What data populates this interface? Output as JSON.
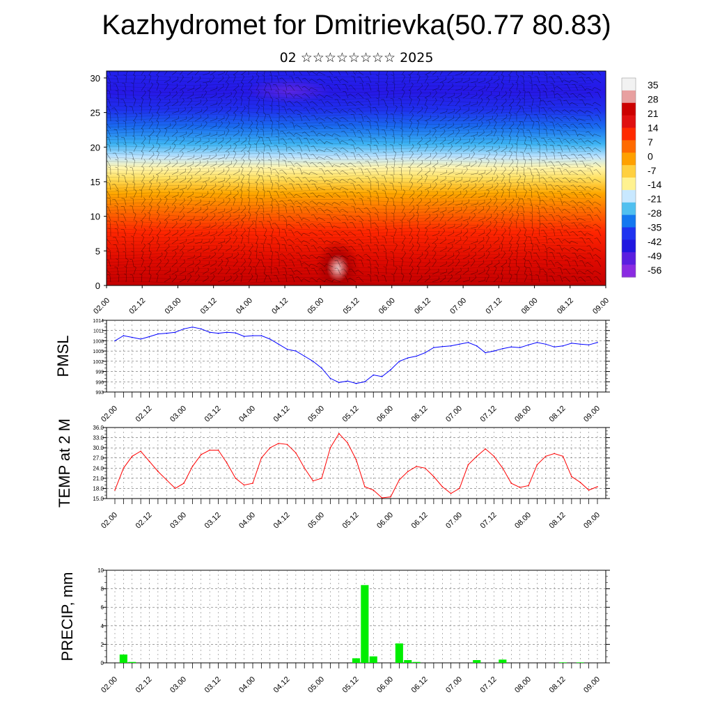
{
  "title": "Kazhydromet for Dmitrievka(50.77 80.83)",
  "subtitle": "02 ☆☆☆☆☆☆☆☆ 2025",
  "time_labels": [
    "02.00",
    "02.12",
    "03.00",
    "03.12",
    "04.00",
    "04.12",
    "05.00",
    "05.12",
    "06.00",
    "06.12",
    "07.00",
    "07.12",
    "08.00",
    "08.12",
    "09.00"
  ],
  "chart_data": [
    {
      "type": "heatmap",
      "title": "",
      "xlabel": "",
      "ylabel": "",
      "ylim": [
        0,
        31
      ],
      "y_ticks": [
        0,
        5,
        10,
        15,
        20,
        25,
        30
      ],
      "colorbar": {
        "labels": [
          35,
          28,
          21,
          14,
          7,
          0,
          -7,
          -14,
          -21,
          -28,
          -35,
          -42,
          -49,
          -56
        ],
        "colors": [
          "#f2f2f2",
          "#e8a0a0",
          "#cc0000",
          "#e01010",
          "#ff2a00",
          "#ff6a00",
          "#ffa000",
          "#ffd040",
          "#fff290",
          "#c8e8ff",
          "#50c0f0",
          "#1478f0",
          "#1f33f0",
          "#2016e0",
          "#5a1ee0",
          "#8a2be2"
        ]
      },
      "overlay": "wind barbs"
    },
    {
      "type": "line",
      "ylabel": "PMSL",
      "ylim": [
        993,
        1014
      ],
      "y_ticks": [
        993,
        996,
        999,
        1002,
        1005,
        1008,
        1011,
        1014
      ],
      "color": "#0000ff",
      "series": [
        {
          "values": [
            1008,
            1009.5,
            1009,
            1008.5,
            1009.2,
            1010,
            1010.2,
            1010.5,
            1011.5,
            1012,
            1011.5,
            1010.5,
            1010.2,
            1010.5,
            1010.3,
            1009.3,
            1009.5,
            1009.5,
            1008.5,
            1007,
            1005.5,
            1005,
            1003.5,
            1002,
            1000,
            997,
            995.8,
            996.2,
            995.5,
            996,
            998,
            997.5,
            999.5,
            1002,
            1003,
            1003.5,
            1004.5,
            1006,
            1006.3,
            1006.5,
            1007,
            1007.5,
            1006.5,
            1004.5,
            1005,
            1005.7,
            1006.2,
            1006,
            1006.8,
            1007.5,
            1007,
            1006.2,
            1006.5,
            1007.3,
            1007,
            1006.8,
            1007.5
          ]
        }
      ]
    },
    {
      "type": "line",
      "ylabel": "TEMP at 2 M",
      "ylim": [
        15,
        36
      ],
      "y_ticks": [
        "15.0",
        "18.0",
        "21.0",
        "24.0",
        "27.0",
        "30.0",
        "33.0",
        "36.0"
      ],
      "color": "#ff0000",
      "series": [
        {
          "values": [
            17.5,
            24,
            27.5,
            29,
            26,
            23,
            20.5,
            18,
            19.5,
            24.5,
            28,
            29.3,
            29.3,
            25.5,
            21,
            19,
            19.5,
            27,
            30,
            31.3,
            31,
            28.5,
            24,
            20.2,
            21,
            30,
            34.2,
            31.5,
            26.5,
            18.5,
            17.5,
            15.2,
            15.5,
            20.5,
            23,
            24.5,
            24,
            21.5,
            18.5,
            16.5,
            18,
            25,
            27.5,
            29.7,
            27.5,
            24,
            19.5,
            18.3,
            18.8,
            25,
            27.5,
            28.3,
            27.5,
            21.5,
            19.8,
            17.5,
            18.5
          ]
        }
      ]
    },
    {
      "type": "bar",
      "ylabel": "PRECIP, mm",
      "ylim": [
        0,
        10
      ],
      "y_ticks": [
        0,
        2,
        4,
        6,
        8,
        10
      ],
      "color": "#00ee00",
      "series": [
        {
          "values": [
            0,
            0.9,
            0.1,
            0,
            0,
            0,
            0,
            0,
            0,
            0,
            0,
            0,
            0,
            0,
            0,
            0,
            0,
            0,
            0,
            0,
            0,
            0,
            0,
            0,
            0,
            0,
            0,
            0,
            0.5,
            8.4,
            0.7,
            0,
            0,
            2.1,
            0.3,
            0.1,
            0,
            0,
            0,
            0,
            0,
            0,
            0.3,
            0,
            0,
            0.35,
            0,
            0,
            0,
            0,
            0,
            0,
            0.05,
            0,
            0.05,
            0,
            0
          ]
        }
      ]
    }
  ]
}
